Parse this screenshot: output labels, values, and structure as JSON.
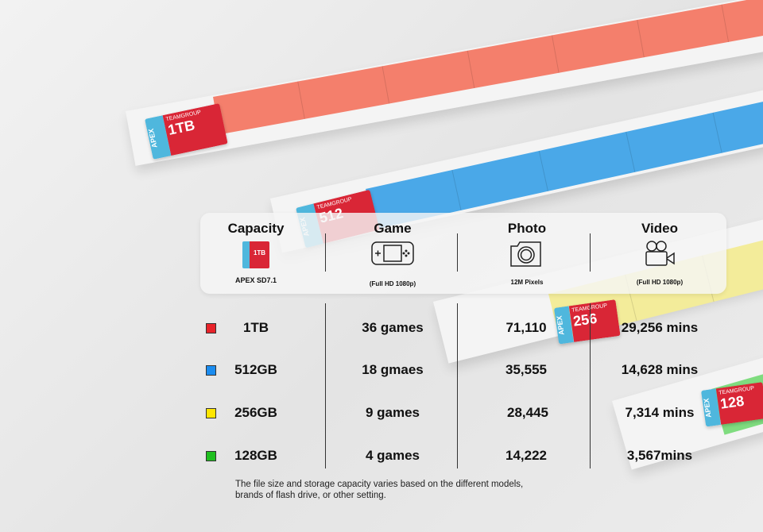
{
  "colors": {
    "1TB": "#e8232a",
    "512GB": "#1a8cf0",
    "256GB": "#ffe600",
    "128GB": "#1fbf1f",
    "bar_red": "#f47f6c",
    "bar_blue": "#4aa8e8",
    "bar_yellow": "#f3ec9a",
    "bar_green": "#7fdc7f"
  },
  "card": {
    "brand": "TEAMGROUP",
    "series": "APEX",
    "capacities": [
      "1TB",
      "512",
      "256",
      "128"
    ]
  },
  "header": {
    "columns": [
      {
        "title": "Capacity",
        "icon": "sd-card-icon",
        "sub": "APEX SD7.1"
      },
      {
        "title": "Game",
        "icon": "handheld-console-icon",
        "sub": "(Full HD 1080p)"
      },
      {
        "title": "Photo",
        "icon": "camera-icon",
        "sub": "12M Pixels"
      },
      {
        "title": "Video",
        "icon": "video-camera-icon",
        "sub": "(Full HD 1080p)"
      }
    ]
  },
  "rows": [
    {
      "capacity": "1TB",
      "game": "36 games",
      "photo": "71,110",
      "video": "29,256 mins"
    },
    {
      "capacity": "512GB",
      "game": "18 gmaes",
      "photo": "35,555",
      "video": "14,628 mins"
    },
    {
      "capacity": "256GB",
      "game": "9 games",
      "photo": "28,445",
      "video": "7,314 mins"
    },
    {
      "capacity": "128GB",
      "game": "4 games",
      "photo": "14,222",
      "video": "3,567mins"
    }
  ],
  "note": {
    "line1": "The file size and storage capacity varies based on the different models,",
    "line2": "brands of flash drive, or other setting."
  }
}
